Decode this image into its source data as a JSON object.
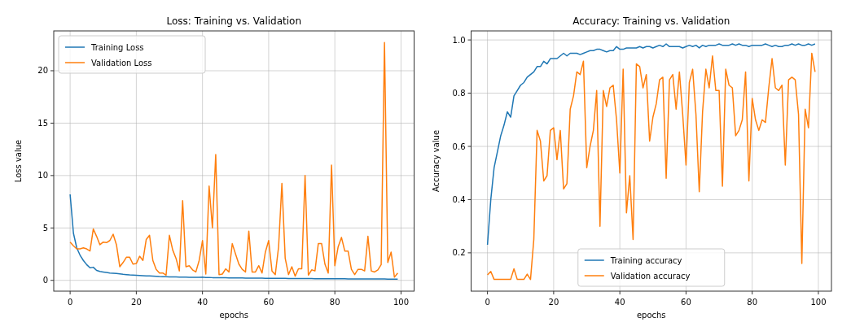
{
  "chart_data": [
    {
      "type": "line",
      "title": "Loss: Training vs. Validation",
      "xlabel": "epochs",
      "ylabel": "Loss value",
      "x": [
        0,
        1,
        2,
        3,
        4,
        5,
        6,
        7,
        8,
        9,
        10,
        11,
        12,
        13,
        14,
        15,
        16,
        17,
        18,
        19,
        20,
        21,
        22,
        23,
        24,
        25,
        26,
        27,
        28,
        29,
        30,
        31,
        32,
        33,
        34,
        35,
        36,
        37,
        38,
        39,
        40,
        41,
        42,
        43,
        44,
        45,
        46,
        47,
        48,
        49,
        50,
        51,
        52,
        53,
        54,
        55,
        56,
        57,
        58,
        59,
        60,
        61,
        62,
        63,
        64,
        65,
        66,
        67,
        68,
        69,
        70,
        71,
        72,
        73,
        74,
        75,
        76,
        77,
        78,
        79,
        80,
        81,
        82,
        83,
        84,
        85,
        86,
        87,
        88,
        89,
        90,
        91,
        92,
        93,
        94,
        95,
        96,
        97,
        98,
        99
      ],
      "series": [
        {
          "name": "Training Loss",
          "color": "#1f77b4",
          "values": [
            8.2,
            4.5,
            3.1,
            2.4,
            1.9,
            1.5,
            1.2,
            1.25,
            0.95,
            0.85,
            0.8,
            0.75,
            0.7,
            0.68,
            0.65,
            0.62,
            0.58,
            0.55,
            0.52,
            0.5,
            0.48,
            0.46,
            0.44,
            0.42,
            0.42,
            0.4,
            0.38,
            0.36,
            0.35,
            0.34,
            0.33,
            0.32,
            0.32,
            0.31,
            0.3,
            0.3,
            0.29,
            0.29,
            0.28,
            0.28,
            0.3,
            0.27,
            0.27,
            0.26,
            0.26,
            0.25,
            0.25,
            0.25,
            0.24,
            0.24,
            0.23,
            0.23,
            0.23,
            0.22,
            0.22,
            0.22,
            0.21,
            0.21,
            0.21,
            0.2,
            0.2,
            0.2,
            0.19,
            0.19,
            0.19,
            0.19,
            0.18,
            0.18,
            0.18,
            0.18,
            0.17,
            0.17,
            0.17,
            0.17,
            0.16,
            0.16,
            0.16,
            0.16,
            0.16,
            0.15,
            0.15,
            0.15,
            0.15,
            0.15,
            0.14,
            0.14,
            0.14,
            0.14,
            0.14,
            0.14,
            0.13,
            0.13,
            0.13,
            0.13,
            0.13,
            0.13,
            0.12,
            0.12,
            0.12,
            0.12
          ]
        },
        {
          "name": "Validation Loss",
          "color": "#ff7f0e",
          "values": [
            3.65,
            3.3,
            3.0,
            3.0,
            3.1,
            3.0,
            2.8,
            4.9,
            4.2,
            3.4,
            3.65,
            3.6,
            3.8,
            4.4,
            3.4,
            1.3,
            1.7,
            2.2,
            2.2,
            1.55,
            1.6,
            2.3,
            1.9,
            3.9,
            4.3,
            1.9,
            1.05,
            0.7,
            0.7,
            0.5,
            4.3,
            2.9,
            2.1,
            0.9,
            7.6,
            1.3,
            1.4,
            1.0,
            0.8,
            1.9,
            3.8,
            0.6,
            9.0,
            5.0,
            12.0,
            0.55,
            0.6,
            1.1,
            0.8,
            3.5,
            2.5,
            1.55,
            1.05,
            0.8,
            4.7,
            0.8,
            0.8,
            1.4,
            0.7,
            2.7,
            3.8,
            0.9,
            0.55,
            3.2,
            9.25,
            2.1,
            0.55,
            1.3,
            0.4,
            1.1,
            1.1,
            10.0,
            0.5,
            1.0,
            0.9,
            3.5,
            3.5,
            1.55,
            0.7,
            11.0,
            1.4,
            3.2,
            4.1,
            2.8,
            2.8,
            1.05,
            0.55,
            1.05,
            1.05,
            0.9,
            4.2,
            0.9,
            0.8,
            1.0,
            1.5,
            22.7,
            1.7,
            2.7,
            0.3,
            0.7
          ]
        }
      ],
      "xlim": [
        -4.95,
        103.95
      ],
      "ylim": [
        -1.03,
        23.8
      ],
      "xticks": [
        0,
        20,
        40,
        60,
        80,
        100
      ],
      "yticks": [
        0,
        5,
        10,
        15,
        20
      ],
      "grid": true,
      "legend": "top left"
    },
    {
      "type": "line",
      "title": "Accuracy: Training vs. Validation",
      "xlabel": "epochs",
      "ylabel": "Accuracy value",
      "x": [
        0,
        1,
        2,
        3,
        4,
        5,
        6,
        7,
        8,
        9,
        10,
        11,
        12,
        13,
        14,
        15,
        16,
        17,
        18,
        19,
        20,
        21,
        22,
        23,
        24,
        25,
        26,
        27,
        28,
        29,
        30,
        31,
        32,
        33,
        34,
        35,
        36,
        37,
        38,
        39,
        40,
        41,
        42,
        43,
        44,
        45,
        46,
        47,
        48,
        49,
        50,
        51,
        52,
        53,
        54,
        55,
        56,
        57,
        58,
        59,
        60,
        61,
        62,
        63,
        64,
        65,
        66,
        67,
        68,
        69,
        70,
        71,
        72,
        73,
        74,
        75,
        76,
        77,
        78,
        79,
        80,
        81,
        82,
        83,
        84,
        85,
        86,
        87,
        88,
        89,
        90,
        91,
        92,
        93,
        94,
        95,
        96,
        97,
        98,
        99
      ],
      "series": [
        {
          "name": "Training accuracy",
          "color": "#1f77b4",
          "values": [
            0.23,
            0.4,
            0.52,
            0.58,
            0.64,
            0.68,
            0.73,
            0.71,
            0.79,
            0.81,
            0.83,
            0.84,
            0.86,
            0.87,
            0.88,
            0.9,
            0.9,
            0.92,
            0.91,
            0.93,
            0.93,
            0.93,
            0.94,
            0.95,
            0.94,
            0.95,
            0.95,
            0.95,
            0.945,
            0.95,
            0.955,
            0.96,
            0.96,
            0.965,
            0.965,
            0.96,
            0.955,
            0.96,
            0.96,
            0.975,
            0.965,
            0.965,
            0.97,
            0.97,
            0.97,
            0.97,
            0.975,
            0.97,
            0.975,
            0.975,
            0.97,
            0.975,
            0.98,
            0.975,
            0.985,
            0.975,
            0.975,
            0.975,
            0.975,
            0.97,
            0.975,
            0.98,
            0.975,
            0.98,
            0.97,
            0.98,
            0.975,
            0.98,
            0.98,
            0.98,
            0.985,
            0.98,
            0.98,
            0.98,
            0.985,
            0.98,
            0.985,
            0.98,
            0.98,
            0.975,
            0.98,
            0.98,
            0.98,
            0.98,
            0.985,
            0.98,
            0.975,
            0.98,
            0.975,
            0.975,
            0.98,
            0.98,
            0.985,
            0.98,
            0.985,
            0.98,
            0.98,
            0.985,
            0.98,
            0.985
          ]
        },
        {
          "name": "Validation accuracy",
          "color": "#ff7f0e",
          "values": [
            0.117,
            0.13,
            0.1,
            0.1,
            0.1,
            0.1,
            0.1,
            0.1,
            0.14,
            0.1,
            0.1,
            0.1,
            0.12,
            0.1,
            0.25,
            0.66,
            0.62,
            0.47,
            0.49,
            0.66,
            0.67,
            0.55,
            0.66,
            0.44,
            0.46,
            0.74,
            0.79,
            0.88,
            0.87,
            0.92,
            0.52,
            0.6,
            0.66,
            0.81,
            0.3,
            0.81,
            0.75,
            0.82,
            0.83,
            0.7,
            0.5,
            0.89,
            0.35,
            0.49,
            0.25,
            0.91,
            0.9,
            0.82,
            0.87,
            0.62,
            0.71,
            0.76,
            0.85,
            0.86,
            0.48,
            0.85,
            0.87,
            0.74,
            0.88,
            0.72,
            0.53,
            0.84,
            0.89,
            0.72,
            0.43,
            0.73,
            0.89,
            0.82,
            0.94,
            0.81,
            0.81,
            0.45,
            0.89,
            0.83,
            0.82,
            0.64,
            0.66,
            0.7,
            0.88,
            0.47,
            0.78,
            0.7,
            0.66,
            0.7,
            0.69,
            0.82,
            0.93,
            0.82,
            0.81,
            0.83,
            0.53,
            0.85,
            0.86,
            0.85,
            0.72,
            0.16,
            0.74,
            0.67,
            0.95,
            0.88
          ]
        }
      ],
      "xlim": [
        -4.95,
        103.95
      ],
      "ylim": [
        0.056,
        1.034
      ],
      "xticks": [
        0,
        20,
        40,
        60,
        80,
        100
      ],
      "yticks": [
        0.2,
        0.4,
        0.6,
        0.8,
        {
          "value": 1,
          "label": "1.0"
        }
      ],
      "grid": true,
      "legend": "bottom"
    }
  ]
}
